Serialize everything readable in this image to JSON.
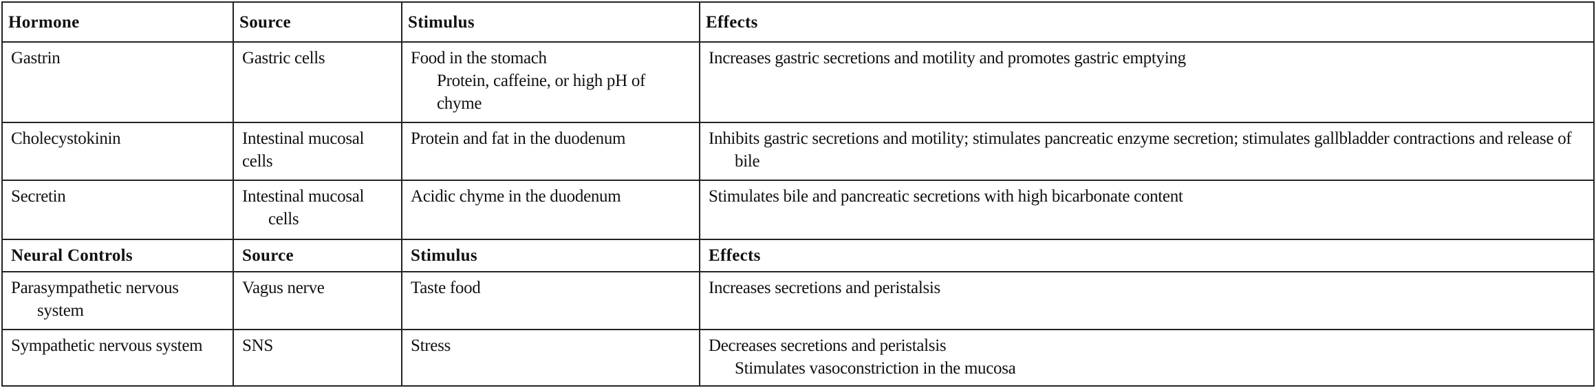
{
  "table": {
    "header": {
      "col1": "Hormone",
      "col2": "Source",
      "col3": "Stimulus",
      "col4": "Effects"
    },
    "hormones": [
      {
        "name": "Gastrin",
        "source": "Gastric cells",
        "stimulus": "Food in the stomach",
        "stimulus_detail": "Protein, caffeine, or high pH of chyme",
        "effects": "Increases gastric secretions and motility and promotes gastric emptying"
      },
      {
        "name": "Cholecystokinin",
        "source": "Intestinal mucosal cells",
        "stimulus": "Protein and fat in the duodenum",
        "effects": "Inhibits gastric secretions and motility; stimulates pancreatic enzyme secretion; stimulates gallbladder contractions and release of bile"
      },
      {
        "name": "Secretin",
        "source": "Intestinal mucosal cells",
        "stimulus": "Acidic chyme in the duodenum",
        "effects": "Stimulates bile and pancreatic secretions with high bicarbonate content"
      }
    ],
    "neural_header": {
      "col1": "Neural Controls",
      "col2": "Source",
      "col3": "Stimulus",
      "col4": "Effects"
    },
    "neural": [
      {
        "name": "Parasympathetic nervous system",
        "source": "Vagus nerve",
        "stimulus": "Taste food",
        "effects": "Increases secretions and peristalsis"
      },
      {
        "name": "Sympathetic nervous system",
        "source": "SNS",
        "stimulus": "Stress",
        "effects": "Decreases secretions and peristalsis",
        "effects_detail": "Stimulates vasoconstriction in the mucosa"
      }
    ]
  }
}
